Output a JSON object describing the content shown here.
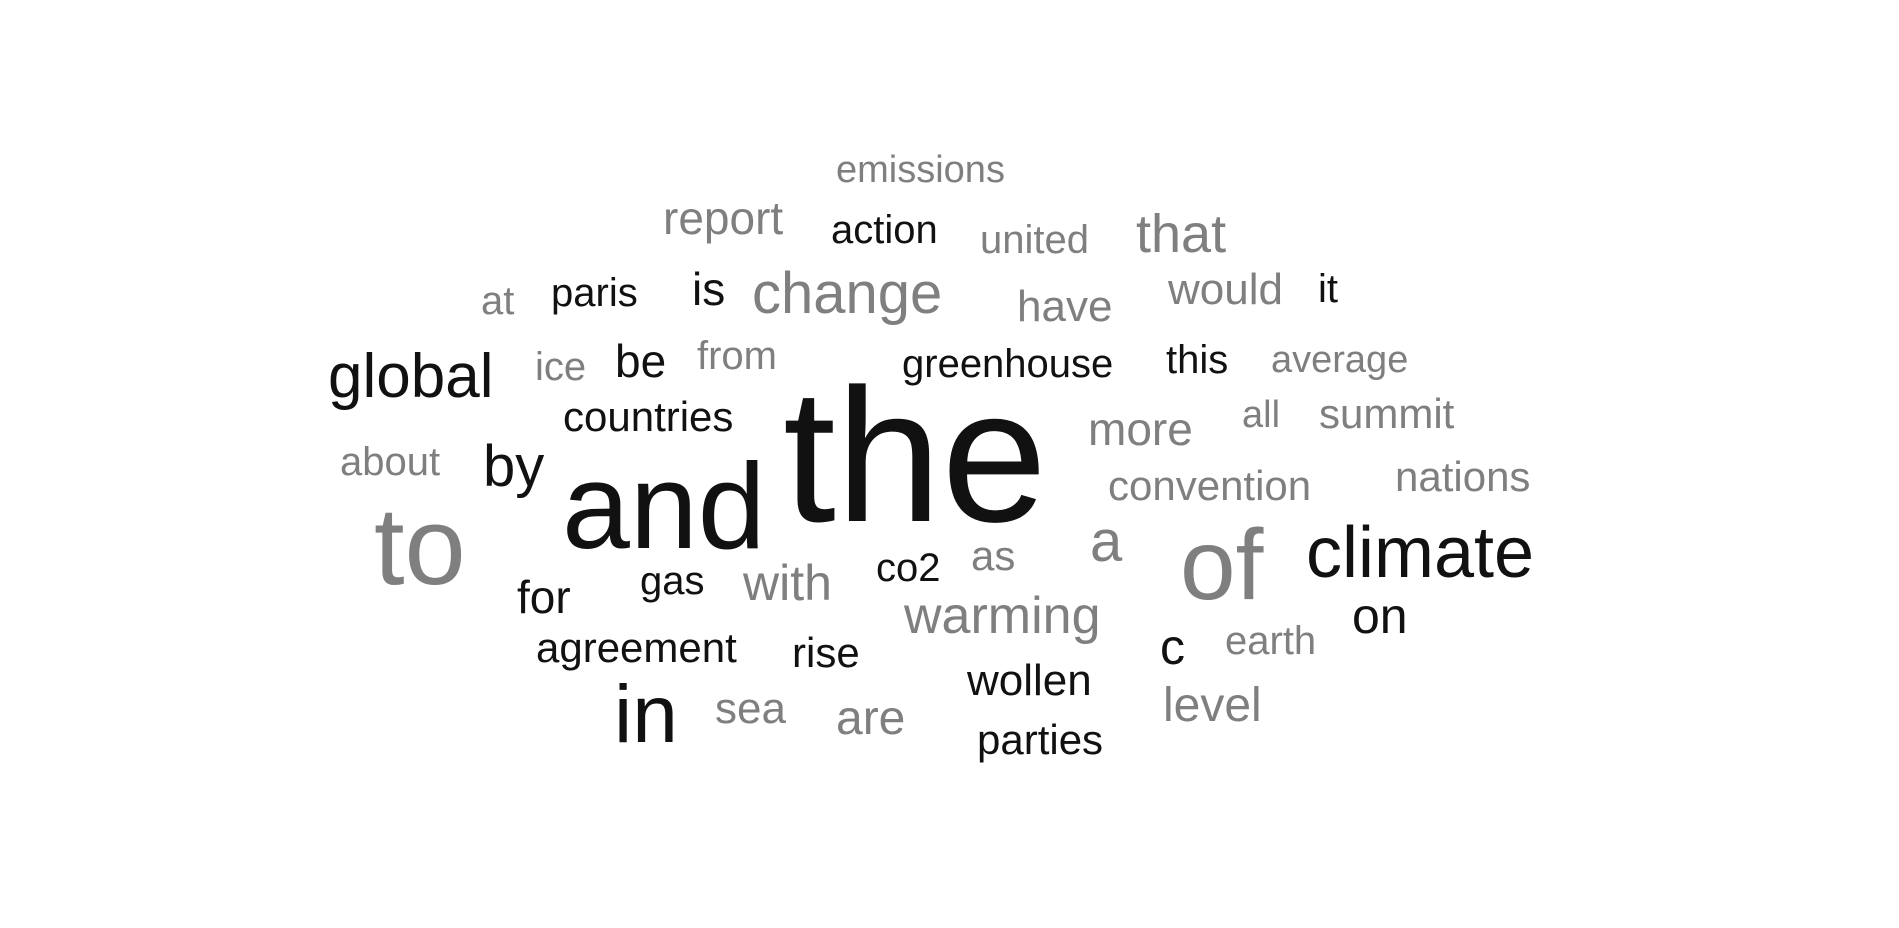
{
  "colors": {
    "dark": "#111111",
    "gray": "#7f7f7f",
    "background": "#ffffff"
  },
  "words": [
    {
      "text": "the",
      "tone": "dark"
    },
    {
      "text": "and",
      "tone": "dark"
    },
    {
      "text": "to",
      "tone": "gray"
    },
    {
      "text": "of",
      "tone": "gray"
    },
    {
      "text": "climate",
      "tone": "dark"
    },
    {
      "text": "in",
      "tone": "dark"
    },
    {
      "text": "global",
      "tone": "dark"
    },
    {
      "text": "change",
      "tone": "gray"
    },
    {
      "text": "emissions",
      "tone": "gray"
    },
    {
      "text": "report",
      "tone": "gray"
    },
    {
      "text": "action",
      "tone": "dark"
    },
    {
      "text": "united",
      "tone": "gray"
    },
    {
      "text": "that",
      "tone": "gray"
    },
    {
      "text": "at",
      "tone": "gray"
    },
    {
      "text": "paris",
      "tone": "dark"
    },
    {
      "text": "is",
      "tone": "dark"
    },
    {
      "text": "have",
      "tone": "gray"
    },
    {
      "text": "would",
      "tone": "gray"
    },
    {
      "text": "it",
      "tone": "dark"
    },
    {
      "text": "ice",
      "tone": "gray"
    },
    {
      "text": "be",
      "tone": "dark"
    },
    {
      "text": "from",
      "tone": "gray"
    },
    {
      "text": "greenhouse",
      "tone": "dark"
    },
    {
      "text": "this",
      "tone": "dark"
    },
    {
      "text": "average",
      "tone": "gray"
    },
    {
      "text": "countries",
      "tone": "dark"
    },
    {
      "text": "more",
      "tone": "gray"
    },
    {
      "text": "all",
      "tone": "gray"
    },
    {
      "text": "summit",
      "tone": "gray"
    },
    {
      "text": "about",
      "tone": "gray"
    },
    {
      "text": "by",
      "tone": "dark"
    },
    {
      "text": "convention",
      "tone": "gray"
    },
    {
      "text": "nations",
      "tone": "gray"
    },
    {
      "text": "a",
      "tone": "gray"
    },
    {
      "text": "as",
      "tone": "gray"
    },
    {
      "text": "co2",
      "tone": "dark"
    },
    {
      "text": "gas",
      "tone": "dark"
    },
    {
      "text": "with",
      "tone": "gray"
    },
    {
      "text": "for",
      "tone": "dark"
    },
    {
      "text": "warming",
      "tone": "gray"
    },
    {
      "text": "on",
      "tone": "dark"
    },
    {
      "text": "c",
      "tone": "dark"
    },
    {
      "text": "earth",
      "tone": "gray"
    },
    {
      "text": "agreement",
      "tone": "dark"
    },
    {
      "text": "rise",
      "tone": "dark"
    },
    {
      "text": "wollen",
      "tone": "dark"
    },
    {
      "text": "level",
      "tone": "gray"
    },
    {
      "text": "sea",
      "tone": "gray"
    },
    {
      "text": "are",
      "tone": "gray"
    },
    {
      "text": "parties",
      "tone": "dark"
    }
  ]
}
